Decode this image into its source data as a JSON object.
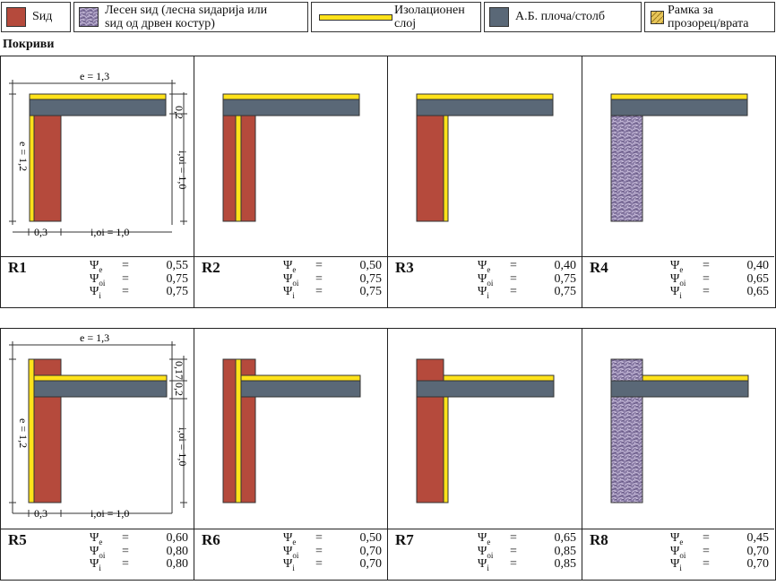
{
  "legend": [
    {
      "label": "Ѕид",
      "color": "#b54a3c"
    },
    {
      "label": "Лесен ѕид (лесна ѕидарија или ѕид од дрвен костур)",
      "line1": "Лесен ѕид (лесна ѕидарија или",
      "line2": "ѕид од дрвен костур)",
      "color": "#8c7fa8"
    },
    {
      "label": "Изолационен слој",
      "line1": "Изолационен",
      "line2": "слој",
      "color": "#ffe21a"
    },
    {
      "label": "А.Б. плоча/столб",
      "color": "#5a6877"
    },
    {
      "label": "Рамка за прозорец/врата",
      "line1": "Рамка за",
      "line2": "прозорец/врата",
      "color": "#e8c65a"
    }
  ],
  "section_title": "Покриви",
  "dims_top": {
    "e": "e = 1,3",
    "t": "0,2",
    "ev": "e = 1,2",
    "i": "i,oi = 1,0",
    "w": "0,3",
    "ih": "i,oi = 1,0"
  },
  "dims_bottom": {
    "e": "e = 1,3",
    "t1": "0,17",
    "t2": "0,2",
    "ev": "e = 1,2",
    "i": "i,oi = 1,0",
    "w": "0,3",
    "ih": "i,oi = 1,0"
  },
  "cases": [
    {
      "id": "R1",
      "psi_e": "0,55",
      "psi_oi": "0,75",
      "psi_i": "0,75"
    },
    {
      "id": "R2",
      "psi_e": "0,50",
      "psi_oi": "0,75",
      "psi_i": "0,75"
    },
    {
      "id": "R3",
      "psi_e": "0,40",
      "psi_oi": "0,75",
      "psi_i": "0,75"
    },
    {
      "id": "R4",
      "psi_e": "0,40",
      "psi_oi": "0,65",
      "psi_i": "0,65"
    },
    {
      "id": "R5",
      "psi_e": "0,60",
      "psi_oi": "0,80",
      "psi_i": "0,80"
    },
    {
      "id": "R6",
      "psi_e": "0,50",
      "psi_oi": "0,70",
      "psi_i": "0,70"
    },
    {
      "id": "R7",
      "psi_e": "0,65",
      "psi_oi": "0,85",
      "psi_i": "0,85"
    },
    {
      "id": "R8",
      "psi_e": "0,45",
      "psi_oi": "0,70",
      "psi_i": "0,70"
    }
  ],
  "psi_symbol": "Ψ",
  "sub_e": "e",
  "sub_oi": "oi",
  "sub_i": "i",
  "equals": "="
}
